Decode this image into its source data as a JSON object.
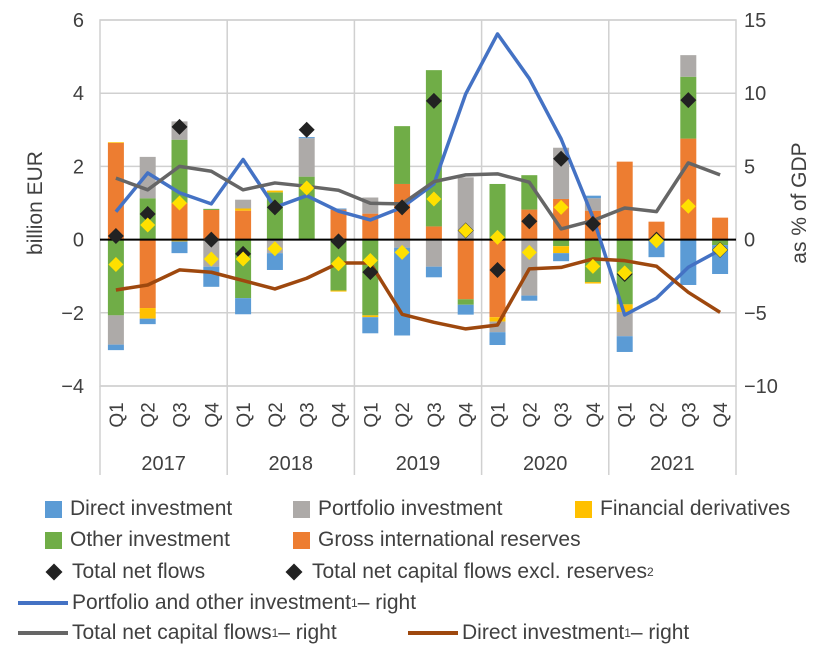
{
  "chart_data": {
    "type": "bar",
    "subtype": "stacked bar + markers + lines (dual axis)",
    "left_axis": {
      "label": "billion EUR",
      "range": [
        -4,
        6
      ],
      "ticks": [
        "−4",
        "−2",
        "0",
        "2",
        "4",
        "6"
      ]
    },
    "right_axis": {
      "label": "as % of GDP",
      "range": [
        -10,
        15
      ],
      "ticks": [
        "−10",
        "−5",
        "0",
        "5",
        "10",
        "15"
      ]
    },
    "years": [
      "2017",
      "2018",
      "2019",
      "2020",
      "2021"
    ],
    "quarters": [
      "Q1",
      "Q2",
      "Q3",
      "Q4"
    ],
    "bar_series": [
      {
        "name": "Direct investment",
        "color": "#5B9BD5",
        "values": [
          -0.15,
          -0.15,
          -0.32,
          -0.55,
          -0.44,
          -0.46,
          0.03,
          0.03,
          -0.44,
          -2.4,
          -0.29,
          -0.27,
          -0.35,
          -0.14,
          -0.22,
          0.07,
          -0.43,
          -0.48,
          -1.24,
          -0.79
        ]
      },
      {
        "name": "Portfolio investment",
        "color": "#ADAAA8",
        "values": [
          -0.8,
          1.13,
          0.5,
          -0.74,
          0.24,
          -0.37,
          1.05,
          0,
          0.44,
          -0.22,
          -0.74,
          1.7,
          -0.29,
          -1.53,
          1.4,
          0.34,
          -0.66,
          0,
          0.59,
          0
        ]
      },
      {
        "name": "Financial derivatives",
        "color": "#FFC000",
        "values": [
          0.02,
          -0.29,
          -0.05,
          0,
          0.06,
          0.05,
          0,
          -0.03,
          -0.05,
          0,
          0,
          0,
          -0.12,
          0,
          -0.19,
          -0.04,
          -0.21,
          0,
          0,
          0
        ]
      },
      {
        "name": "Other investment",
        "color": "#70AD47",
        "values": [
          -2.07,
          1.13,
          1.73,
          0.03,
          -1.6,
          1.29,
          1.72,
          -1.39,
          -2.07,
          1.58,
          4.27,
          -0.15,
          1.52,
          0.94,
          -0.18,
          -1.16,
          -1.77,
          0,
          1.69,
          -0.15
        ]
      },
      {
        "name": "Gross international reserves",
        "color": "#ED7D31",
        "values": [
          2.64,
          -1.87,
          1.0,
          0.81,
          0.79,
          0,
          0,
          0.82,
          0.71,
          1.52,
          0.36,
          -1.63,
          -2.12,
          0.82,
          1.11,
          0.79,
          2.13,
          0.49,
          2.76,
          0.6
        ]
      }
    ],
    "marker_series": [
      {
        "name": "Total net flows",
        "color": "#222222",
        "values": [
          0.1,
          0.7,
          3.08,
          0.0,
          -0.39,
          0.88,
          3.0,
          -0.05,
          -0.89,
          0.88,
          3.79,
          0.25,
          -0.83,
          0.5,
          2.21,
          0.43,
          -0.94,
          0.0,
          3.81,
          -0.28
        ]
      },
      {
        "name": "Total net capital flows excl. reserves",
        "sup": "2",
        "color": "#FFE000",
        "values": [
          -0.68,
          0.4,
          1.0,
          -0.53,
          -0.53,
          -0.25,
          1.41,
          -0.66,
          -0.57,
          -0.35,
          1.11,
          0.25,
          0.06,
          -0.35,
          0.88,
          -0.73,
          -0.91,
          -0.03,
          0.91,
          -0.28
        ]
      }
    ],
    "line_series": [
      {
        "name": "Portfolio and other investment",
        "sup": "1",
        "suffix": " – right",
        "color": "#4472C4",
        "values": [
          1.9,
          4.55,
          3.2,
          2.44,
          5.47,
          2.2,
          3.0,
          1.94,
          1.34,
          2.2,
          3.8,
          9.95,
          14.05,
          11.0,
          6.88,
          1.53,
          -5.15,
          -4.0,
          -1.89,
          -0.71
        ]
      },
      {
        "name": "Total net capital flows",
        "sup": "1",
        "suffix": " – right",
        "color": "#666666",
        "values": [
          4.2,
          3.4,
          5.0,
          4.67,
          3.4,
          3.87,
          3.64,
          3.37,
          2.48,
          2.44,
          3.96,
          4.42,
          4.49,
          3.92,
          0.73,
          1.3,
          2.16,
          1.91,
          5.24,
          4.42
        ]
      },
      {
        "name": "Direct investment",
        "sup": "1",
        "suffix": " – right",
        "color": "#9E480E",
        "values": [
          -3.44,
          -3.1,
          -2.07,
          -2.23,
          -2.8,
          -3.37,
          -2.64,
          -1.6,
          -1.6,
          -5.1,
          -5.65,
          -6.1,
          -5.83,
          -2.0,
          -1.9,
          -1.32,
          -1.44,
          -1.82,
          -3.6,
          -4.97
        ]
      }
    ],
    "grid": true,
    "legend_placement": "bottom"
  }
}
